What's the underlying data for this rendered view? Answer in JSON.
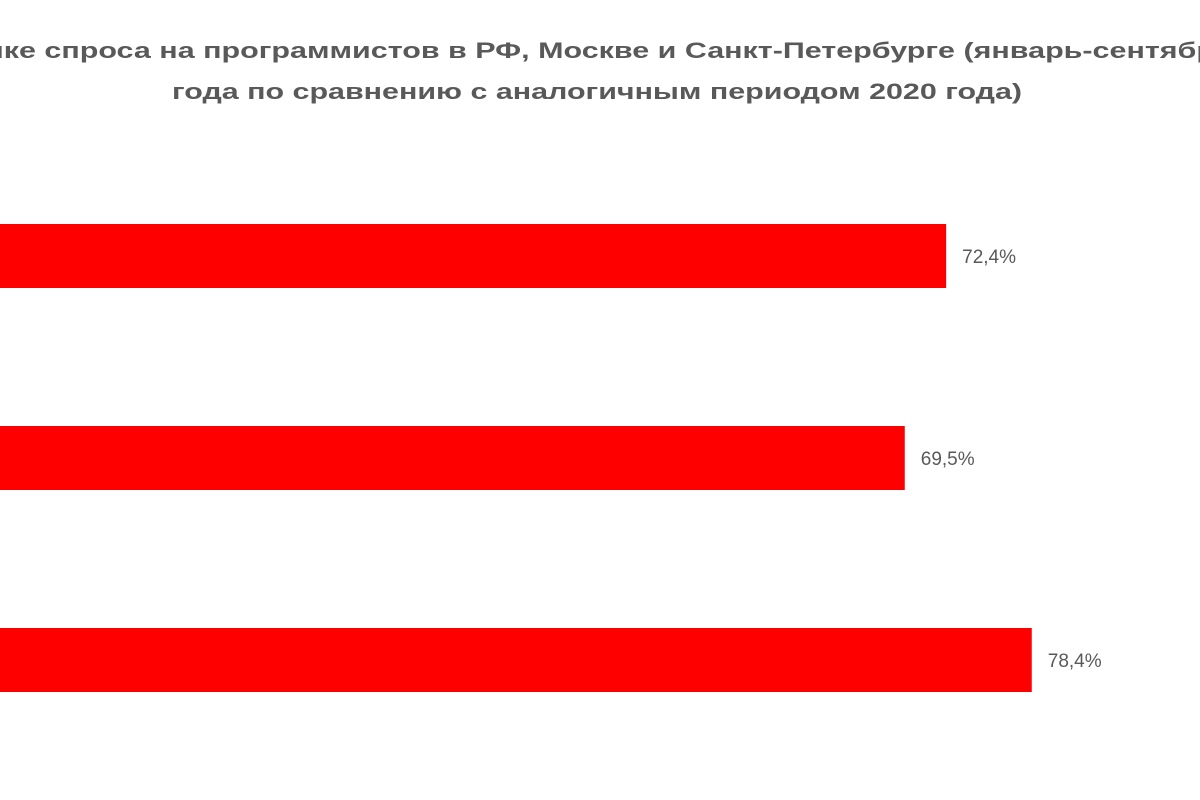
{
  "chart_data": {
    "type": "hbar",
    "title": [
      "ике спроса на программистов в РФ, Москве и Санкт-Петербурге (январь-сентябр",
      "года по сравнению с аналогичным периодом 2020 года)"
    ],
    "categories": [
      null,
      null,
      null
    ],
    "values": [
      72.4,
      69.5,
      78.4
    ],
    "value_labels": [
      "72,4%",
      "69,5%",
      "78,4%"
    ],
    "color": "#ff0000"
  }
}
